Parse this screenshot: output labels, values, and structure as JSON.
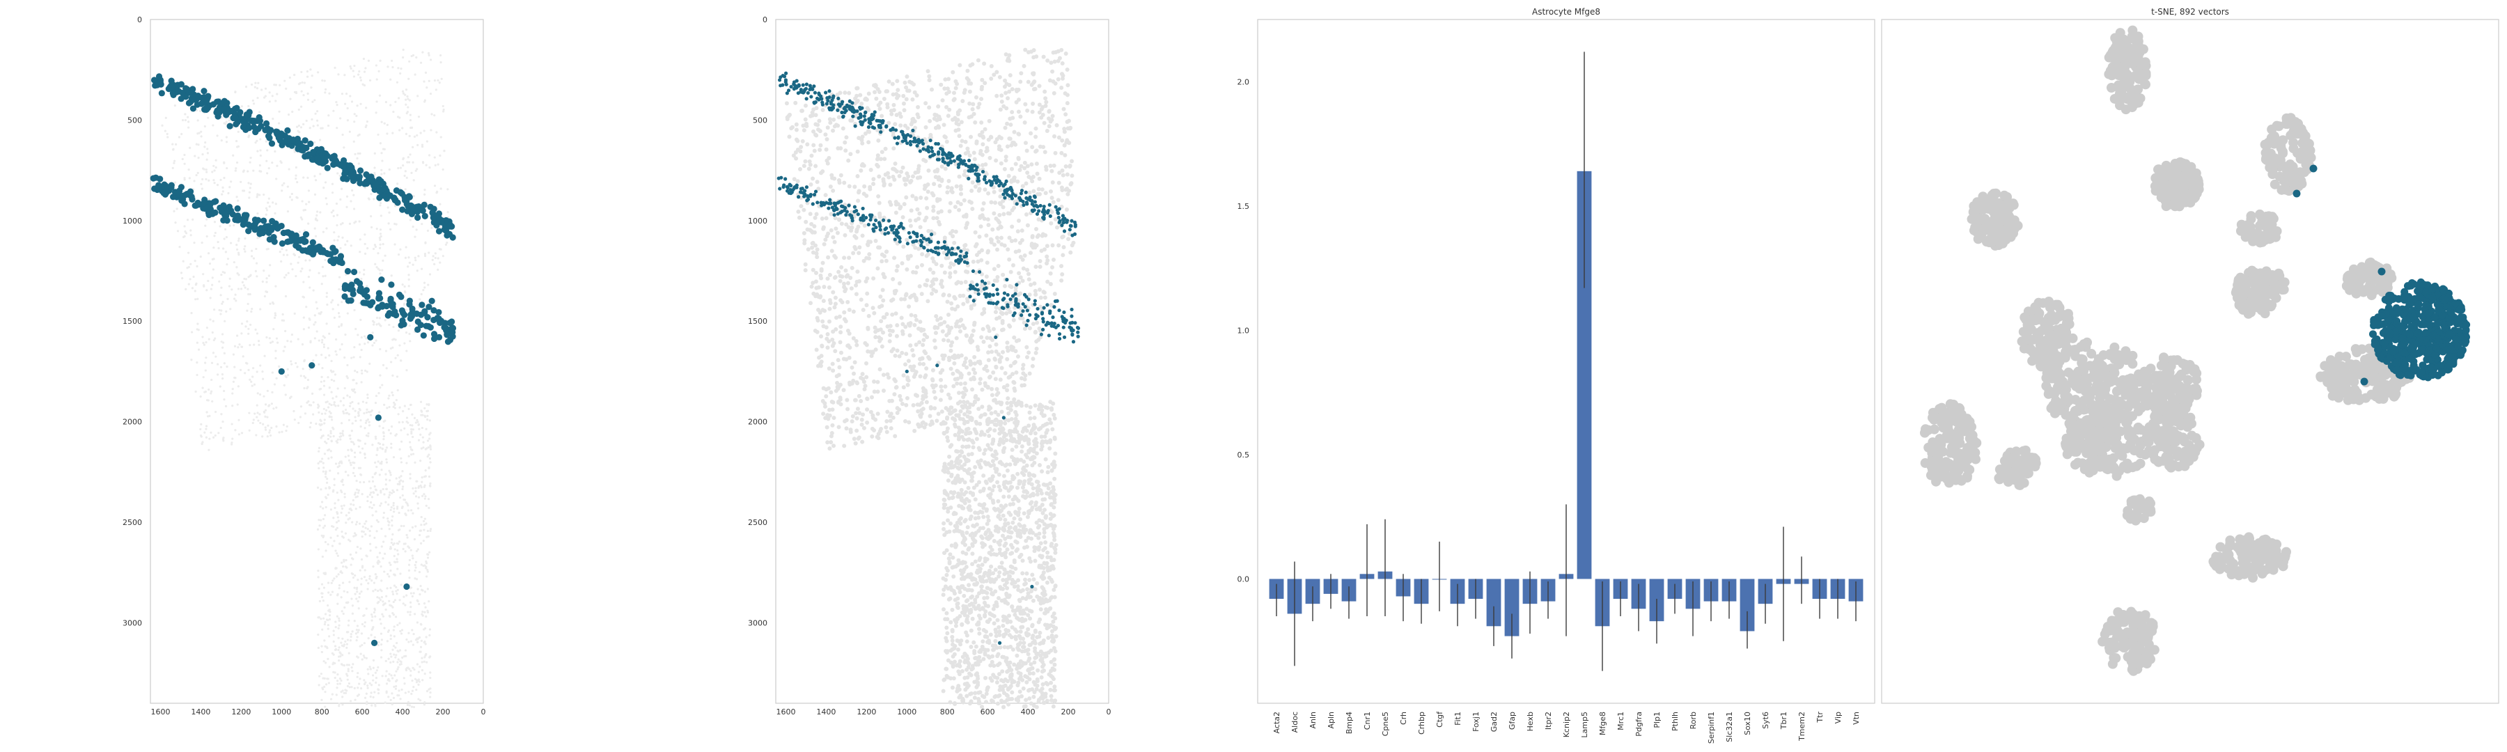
{
  "colors": {
    "highlight": "#1a6784",
    "bar": "#4c72b0",
    "background_cells": "#cccccc",
    "spatial_light": "#e3e3e3",
    "axis": "#cccccc",
    "text": "#333333"
  },
  "panel1": {
    "type": "scatter",
    "xlim": [
      1650,
      0
    ],
    "ylim": [
      3400,
      0
    ],
    "xticks": [
      "1600",
      "1400",
      "1200",
      "1000",
      "800",
      "600",
      "400",
      "200",
      "0"
    ],
    "yticks": [
      "0",
      "500",
      "1000",
      "1500",
      "2000",
      "2500",
      "3000"
    ]
  },
  "panel2": {
    "type": "scatter",
    "xlim": [
      1650,
      0
    ],
    "ylim": [
      3400,
      0
    ],
    "xticks": [
      "1600",
      "1400",
      "1200",
      "1000",
      "800",
      "600",
      "400",
      "200",
      "0"
    ],
    "yticks": [
      "0",
      "500",
      "1000",
      "1500",
      "2000",
      "2500",
      "3000"
    ]
  },
  "chart_data": {
    "type": "bar",
    "title": "Astrocyte Mfge8",
    "ylim": [
      -0.5,
      2.25
    ],
    "yticks": [
      "0.0",
      "0.5",
      "1.0",
      "1.5",
      "2.0"
    ],
    "categories": [
      "Acta2",
      "Aldoc",
      "Anln",
      "Apln",
      "Bmp4",
      "Cnr1",
      "Cpne5",
      "Crh",
      "Crhbp",
      "Ctgf",
      "Fit1",
      "Foxj1",
      "Gad2",
      "Gfap",
      "Hexb",
      "Itpr2",
      "Kcnip2",
      "Lamp5",
      "Mfge8",
      "Mrc1",
      "Pdgfra",
      "Plp1",
      "Pthlh",
      "Rorb",
      "Serpinf1",
      "Slc32a1",
      "Sox10",
      "Syt6",
      "Tbr1",
      "Tmem2",
      "Ttr",
      "Vip",
      "Vtn"
    ],
    "values": [
      -0.08,
      -0.14,
      -0.1,
      -0.06,
      -0.09,
      0.02,
      0.03,
      -0.07,
      -0.1,
      0.0,
      -0.1,
      -0.08,
      -0.19,
      -0.23,
      -0.1,
      -0.09,
      0.02,
      1.64,
      -0.19,
      -0.08,
      -0.12,
      -0.17,
      -0.08,
      -0.12,
      -0.09,
      -0.09,
      -0.21,
      -0.1,
      -0.02,
      -0.02,
      -0.08,
      -0.08,
      -0.09
    ],
    "err_low": [
      -0.15,
      -0.35,
      -0.17,
      -0.12,
      -0.16,
      -0.15,
      -0.15,
      -0.17,
      -0.18,
      -0.13,
      -0.19,
      -0.16,
      -0.27,
      -0.32,
      -0.22,
      -0.16,
      -0.23,
      1.17,
      -0.37,
      -0.15,
      -0.21,
      -0.26,
      -0.14,
      -0.23,
      -0.17,
      -0.16,
      -0.28,
      -0.18,
      -0.25,
      -0.1,
      -0.16,
      -0.16,
      -0.17
    ],
    "err_high": [
      -0.02,
      0.07,
      -0.03,
      0.02,
      -0.03,
      0.22,
      0.24,
      0.02,
      0.0,
      0.15,
      -0.02,
      0.0,
      -0.11,
      -0.14,
      0.03,
      -0.01,
      0.3,
      2.12,
      -0.01,
      -0.01,
      -0.02,
      -0.08,
      -0.02,
      -0.01,
      -0.01,
      -0.01,
      -0.13,
      -0.02,
      0.21,
      0.09,
      0.0,
      0.0,
      -0.01
    ]
  },
  "panel4": {
    "type": "scatter",
    "title": "t-SNE, 892 vectors"
  }
}
